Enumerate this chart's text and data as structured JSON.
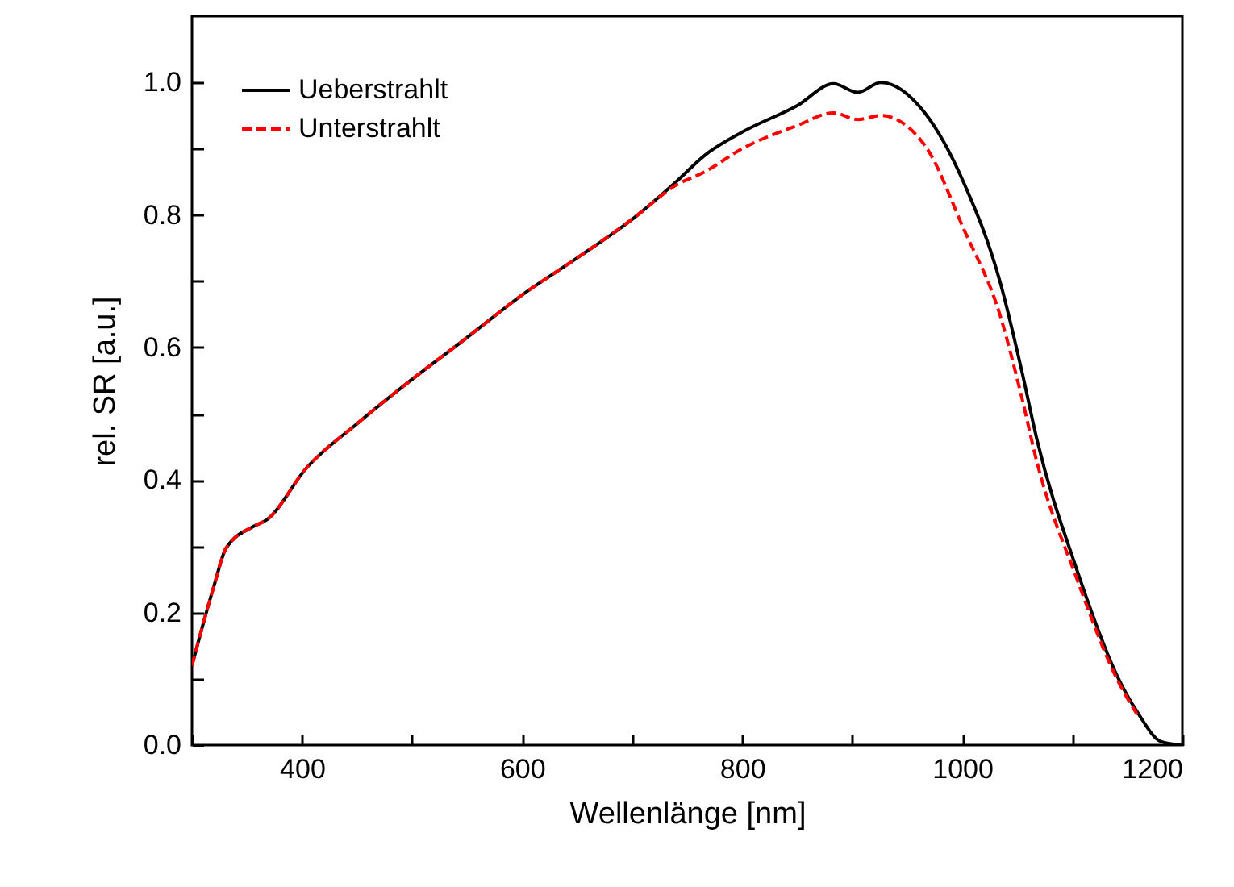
{
  "chart_data": {
    "type": "line",
    "xlabel": "Wellenlänge [nm]",
    "ylabel": "rel. SR [a.u.]",
    "x": [
      300,
      320,
      331,
      356,
      368,
      404,
      450,
      497,
      550,
      599,
      650,
      702,
      740,
      766,
      800,
      850,
      883,
      905,
      926,
      966,
      1001,
      1035,
      1054,
      1068,
      1103,
      1142,
      1159,
      1181,
      1199
    ],
    "series": [
      {
        "name": "Ueberstrahlt",
        "color": "#000000",
        "line_style": "solid",
        "values": [
          0.12,
          0.24,
          0.297,
          0.33,
          0.34,
          0.418,
          0.485,
          0.548,
          0.615,
          0.678,
          0.735,
          0.796,
          0.85,
          0.89,
          0.925,
          0.965,
          0.998,
          0.985,
          1.0,
          0.954,
          0.85,
          0.695,
          0.565,
          0.46,
          0.27,
          0.1,
          0.05,
          0.005,
          0
        ]
      },
      {
        "name": "Unterstrahlt",
        "color": "#ff0000",
        "line_style": "dashed",
        "values": [
          0.12,
          0.24,
          0.297,
          0.33,
          0.34,
          0.418,
          0.485,
          0.548,
          0.615,
          0.678,
          0.735,
          0.796,
          0.845,
          0.865,
          0.9,
          0.935,
          0.954,
          0.944,
          0.95,
          0.905,
          0.78,
          0.645,
          0.525,
          0.426,
          0.256,
          0.095,
          0.046,
          null,
          null
        ]
      }
    ],
    "xlim": [
      300,
      1200
    ],
    "xticks": [
      {
        "value": 300,
        "label": null
      },
      400,
      {
        "value": 500,
        "label": null
      },
      600,
      {
        "value": 700,
        "label": null
      },
      800,
      {
        "value": 900,
        "label": null
      },
      1000,
      {
        "value": 1100,
        "label": null
      },
      1200
    ],
    "ylim": [
      0,
      1.1
    ],
    "yticks": [
      {
        "value": 0,
        "label": "0.0"
      },
      {
        "value": 0.1,
        "label": null
      },
      0.2,
      {
        "value": 0.3,
        "label": null
      },
      0.4,
      {
        "value": 0.5,
        "label": null
      },
      0.6,
      {
        "value": 0.7,
        "label": null
      },
      0.8,
      {
        "value": 0.9,
        "label": null
      },
      {
        "value": 1,
        "label": "1.0"
      }
    ],
    "legend": "top left",
    "grid": false
  }
}
